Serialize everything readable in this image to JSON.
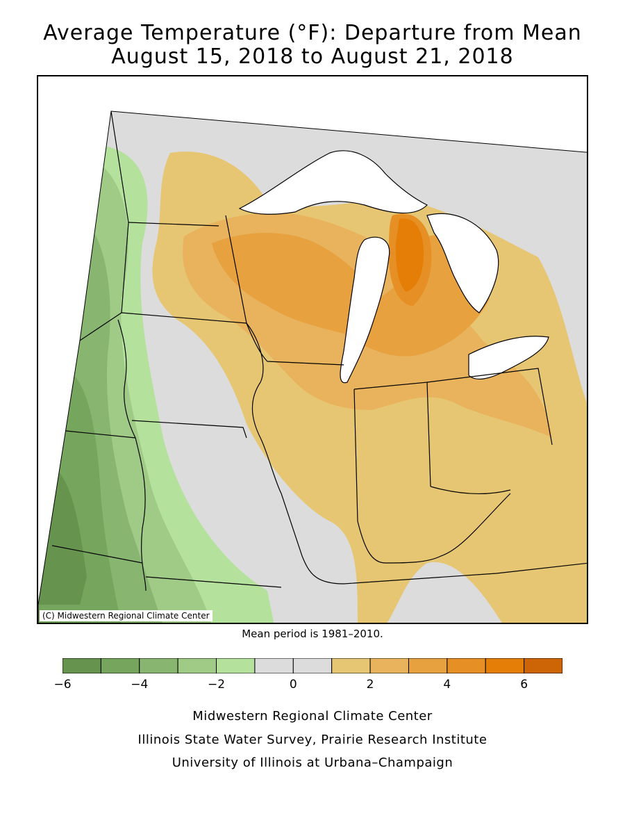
{
  "title_line1": "Average Temperature (°F): Departure from Mean",
  "title_line2": "August 15, 2018 to August 21, 2018",
  "copyright": "(C) Midwestern Regional Climate Center",
  "mean_note": "Mean period is 1981–2010.",
  "legend": {
    "tick_labels": [
      "−6",
      "−4",
      "−2",
      "0",
      "2",
      "4",
      "6"
    ],
    "bins": [
      {
        "from": -6,
        "to": -5,
        "color": "#66944f"
      },
      {
        "from": -5,
        "to": -4,
        "color": "#76a55e"
      },
      {
        "from": -4,
        "to": -3,
        "color": "#88b56f"
      },
      {
        "from": -3,
        "to": -2,
        "color": "#9fcb86"
      },
      {
        "from": -2,
        "to": -1,
        "color": "#b4e29d"
      },
      {
        "from": -1,
        "to": 0,
        "color": "#dcdcdc"
      },
      {
        "from": 0,
        "to": 1,
        "color": "#dcdcdc"
      },
      {
        "from": 1,
        "to": 2,
        "color": "#e7c673"
      },
      {
        "from": 2,
        "to": 3,
        "color": "#e8b35c"
      },
      {
        "from": 3,
        "to": 4,
        "color": "#e7a23f"
      },
      {
        "from": 4,
        "to": 5,
        "color": "#e68f24"
      },
      {
        "from": 5,
        "to": 6,
        "color": "#e57e06"
      },
      {
        "from": 6,
        "to": 7,
        "color": "#cd6507"
      }
    ]
  },
  "credits": [
    "Midwestern Regional Climate Center",
    "Illinois State Water Survey, Prairie Research Institute",
    "University of Illinois at Urbana–Champaign"
  ],
  "colors": {
    "lake": "#ffffff",
    "neutral": "#dcdcdc",
    "border": "#000000"
  }
}
